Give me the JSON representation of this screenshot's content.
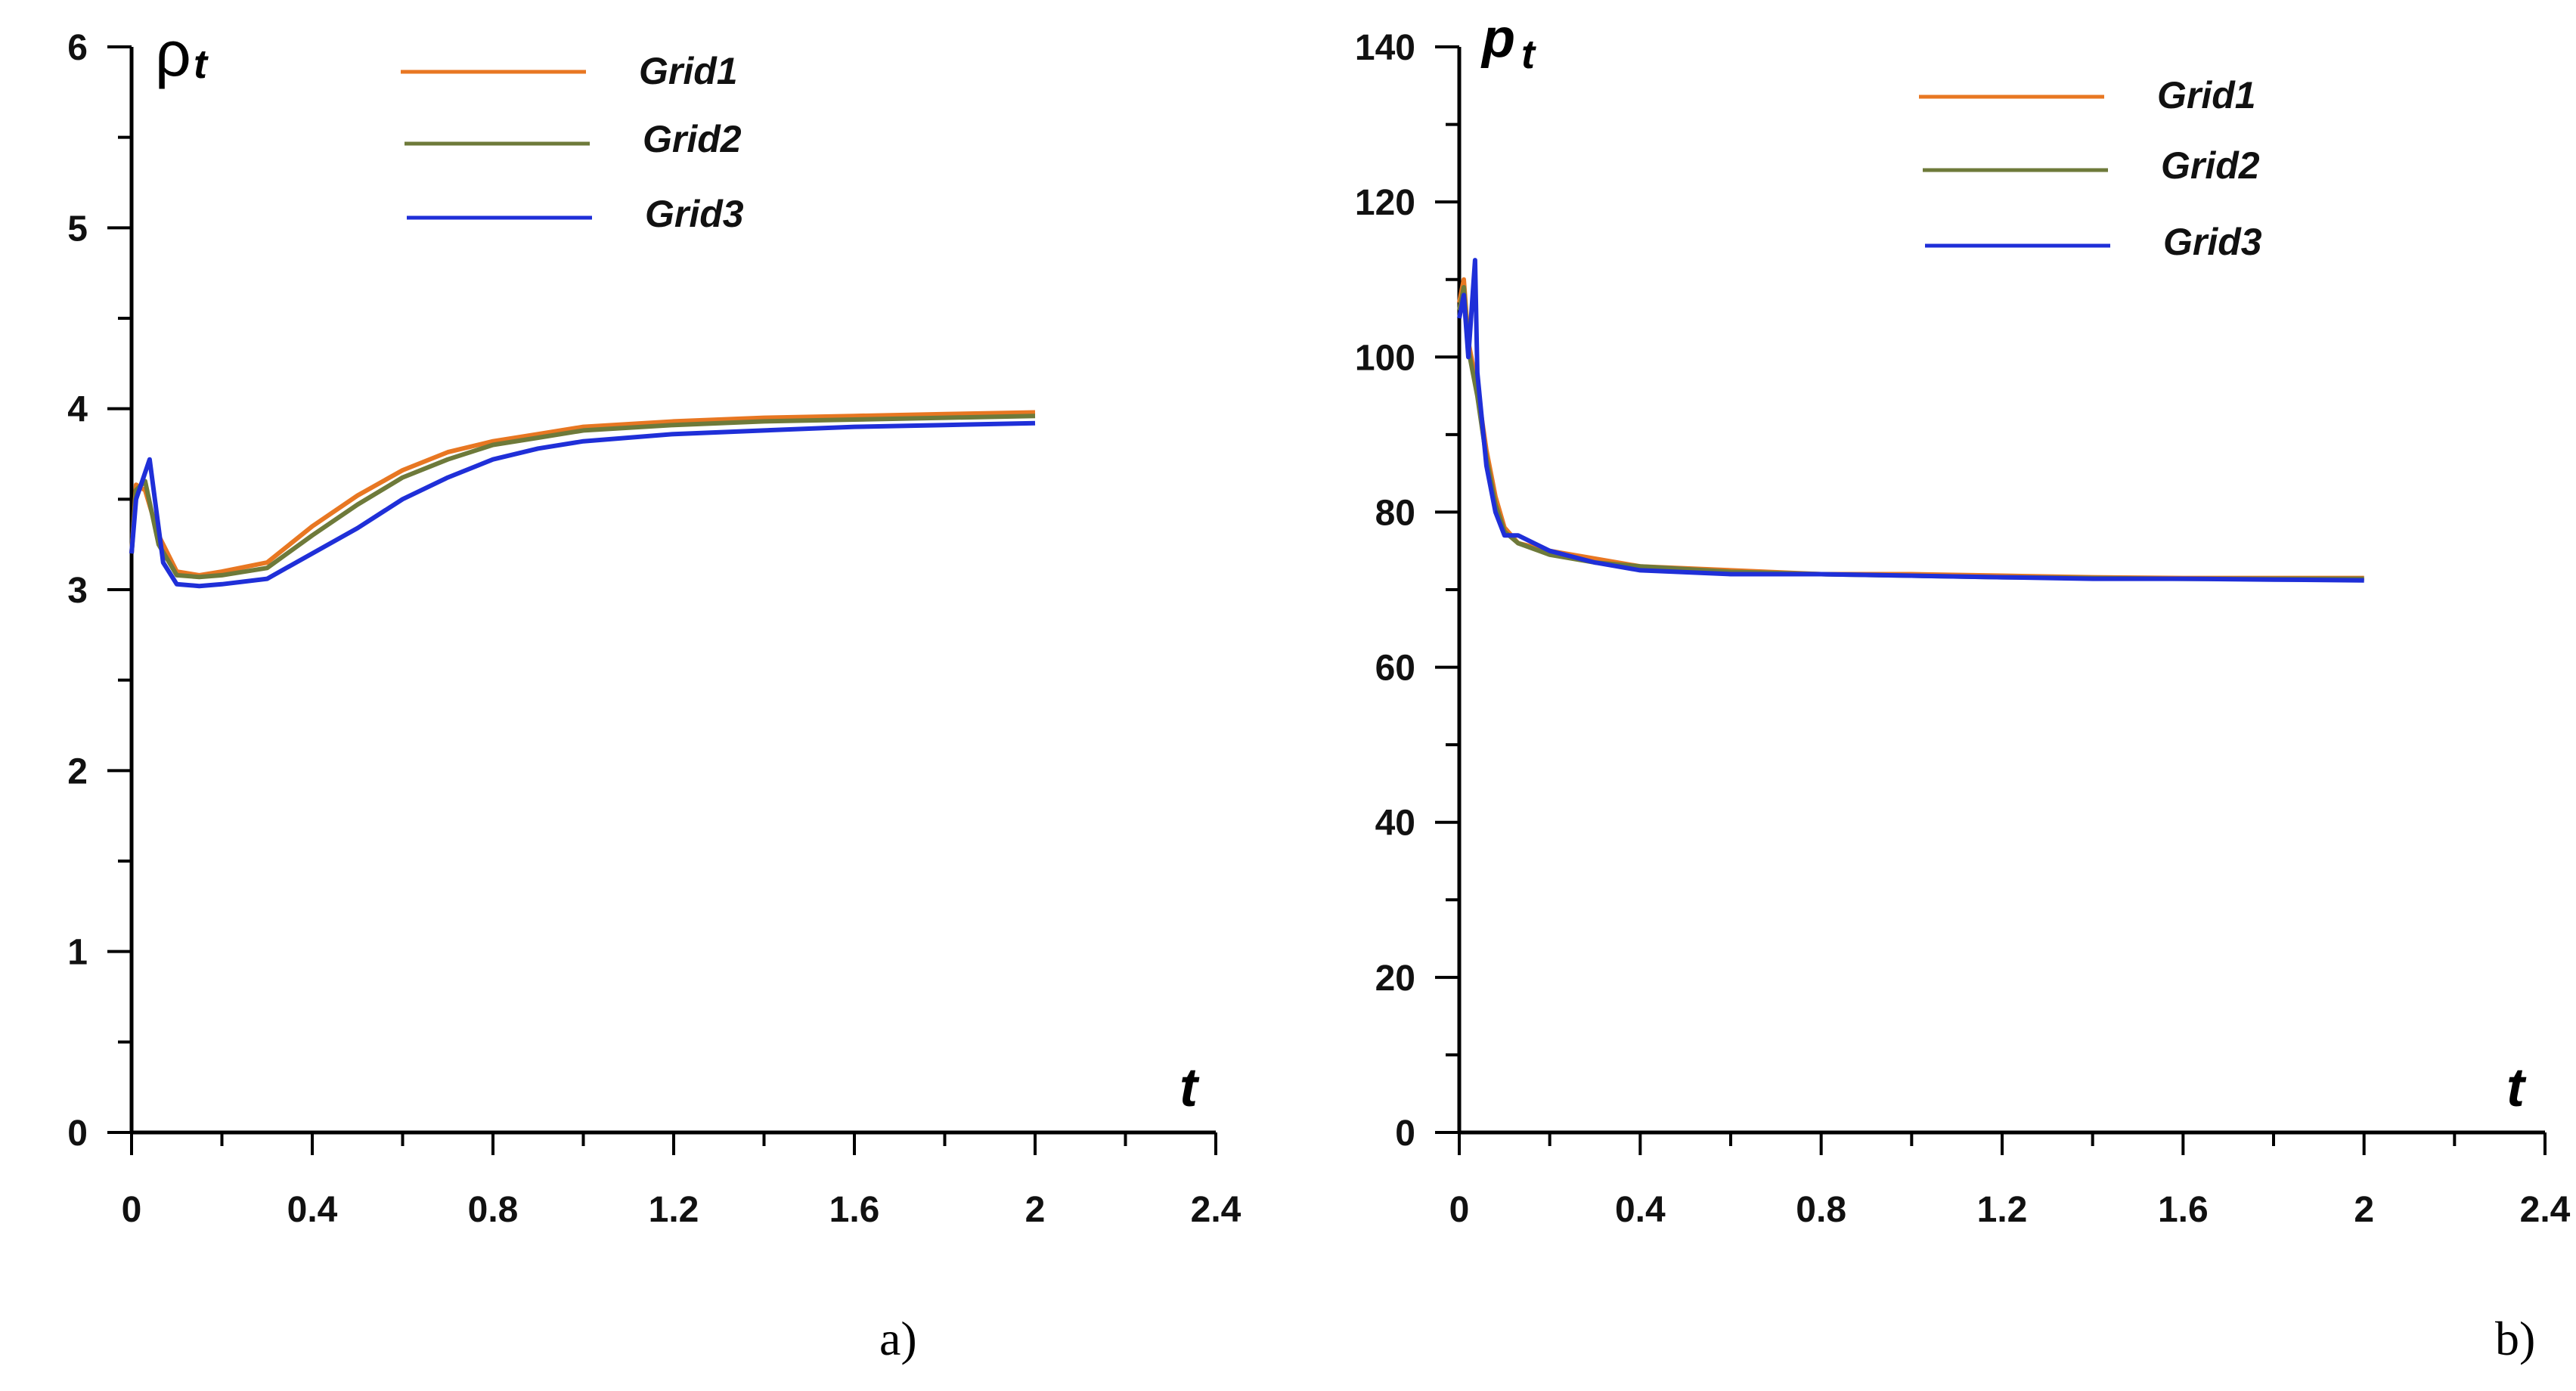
{
  "chart_data": [
    {
      "type": "line",
      "ylabel": "ρ",
      "ylabel_subscript": "t",
      "xlabel": "t",
      "caption": "a)",
      "xlim": [
        0,
        2.4
      ],
      "ylim": [
        0,
        6
      ],
      "x_ticks": [
        "0",
        "0.4",
        "0.8",
        "1.2",
        "1.6",
        "2",
        "2.4"
      ],
      "y_ticks": [
        "0",
        "1",
        "2",
        "3",
        "4",
        "5",
        "6"
      ],
      "grid": false,
      "legend_position": "top-center",
      "series": [
        {
          "name": "Grid1",
          "color": "#E87722",
          "x": [
            0,
            0.01,
            0.03,
            0.06,
            0.1,
            0.15,
            0.2,
            0.3,
            0.4,
            0.5,
            0.6,
            0.7,
            0.8,
            0.9,
            1.0,
            1.2,
            1.4,
            1.6,
            1.8,
            2.0
          ],
          "y": [
            3.2,
            3.58,
            3.55,
            3.3,
            3.1,
            3.08,
            3.1,
            3.15,
            3.35,
            3.52,
            3.66,
            3.76,
            3.82,
            3.86,
            3.9,
            3.93,
            3.95,
            3.96,
            3.97,
            3.98
          ]
        },
        {
          "name": "Grid2",
          "color": "#6E7A3A",
          "x": [
            0,
            0.01,
            0.03,
            0.06,
            0.1,
            0.15,
            0.2,
            0.3,
            0.4,
            0.5,
            0.6,
            0.7,
            0.8,
            0.9,
            1.0,
            1.2,
            1.4,
            1.6,
            1.8,
            2.0
          ],
          "y": [
            3.2,
            3.55,
            3.6,
            3.25,
            3.08,
            3.07,
            3.08,
            3.12,
            3.3,
            3.47,
            3.62,
            3.72,
            3.8,
            3.84,
            3.88,
            3.91,
            3.93,
            3.94,
            3.95,
            3.96
          ]
        },
        {
          "name": "Grid3",
          "color": "#1F2FD8",
          "x": [
            0,
            0.01,
            0.04,
            0.07,
            0.1,
            0.15,
            0.2,
            0.3,
            0.4,
            0.5,
            0.6,
            0.7,
            0.8,
            0.9,
            1.0,
            1.2,
            1.4,
            1.6,
            1.8,
            2.0
          ],
          "y": [
            3.2,
            3.5,
            3.72,
            3.15,
            3.03,
            3.02,
            3.03,
            3.06,
            3.2,
            3.34,
            3.5,
            3.62,
            3.72,
            3.78,
            3.82,
            3.86,
            3.88,
            3.9,
            3.91,
            3.92
          ]
        }
      ]
    },
    {
      "type": "line",
      "ylabel": "p",
      "ylabel_subscript": "t",
      "xlabel": "t",
      "caption": "b)",
      "xlim": [
        0,
        2.4
      ],
      "ylim": [
        0,
        140
      ],
      "x_ticks": [
        "0",
        "0.4",
        "0.8",
        "1.2",
        "1.6",
        "2",
        "2.4"
      ],
      "y_ticks": [
        "0",
        "20",
        "40",
        "60",
        "80",
        "100",
        "120",
        "140"
      ],
      "grid": false,
      "legend_position": "top-center",
      "series": [
        {
          "name": "Grid1",
          "color": "#E87722",
          "x": [
            0,
            0.01,
            0.02,
            0.04,
            0.06,
            0.08,
            0.1,
            0.13,
            0.2,
            0.3,
            0.4,
            0.6,
            0.8,
            1.0,
            1.2,
            1.4,
            1.6,
            1.8,
            2.0
          ],
          "y": [
            107,
            110,
            102,
            96,
            88,
            82,
            78,
            76,
            75,
            74,
            73,
            72.5,
            72,
            72,
            71.8,
            71.6,
            71.5,
            71.5,
            71.5
          ]
        },
        {
          "name": "Grid2",
          "color": "#6E7A3A",
          "x": [
            0,
            0.01,
            0.02,
            0.04,
            0.06,
            0.08,
            0.1,
            0.13,
            0.2,
            0.3,
            0.4,
            0.6,
            0.8,
            1.0,
            1.2,
            1.4,
            1.6,
            1.8,
            2.0
          ],
          "y": [
            106,
            109,
            101,
            95,
            87,
            81,
            77.5,
            76,
            74.5,
            73.5,
            73,
            72.3,
            72,
            71.8,
            71.6,
            71.5,
            71.4,
            71.4,
            71.4
          ]
        },
        {
          "name": "Grid3",
          "color": "#1F2FD8",
          "x": [
            0,
            0.01,
            0.02,
            0.035,
            0.04,
            0.06,
            0.08,
            0.1,
            0.13,
            0.2,
            0.3,
            0.4,
            0.6,
            0.8,
            1.0,
            1.2,
            1.4,
            1.6,
            1.8,
            2.0
          ],
          "y": [
            105,
            108,
            100,
            112.5,
            98,
            86,
            80,
            77,
            77,
            75,
            73.5,
            72.5,
            72,
            72,
            71.8,
            71.6,
            71.4,
            71.4,
            71.3,
            71.2
          ]
        }
      ]
    }
  ]
}
